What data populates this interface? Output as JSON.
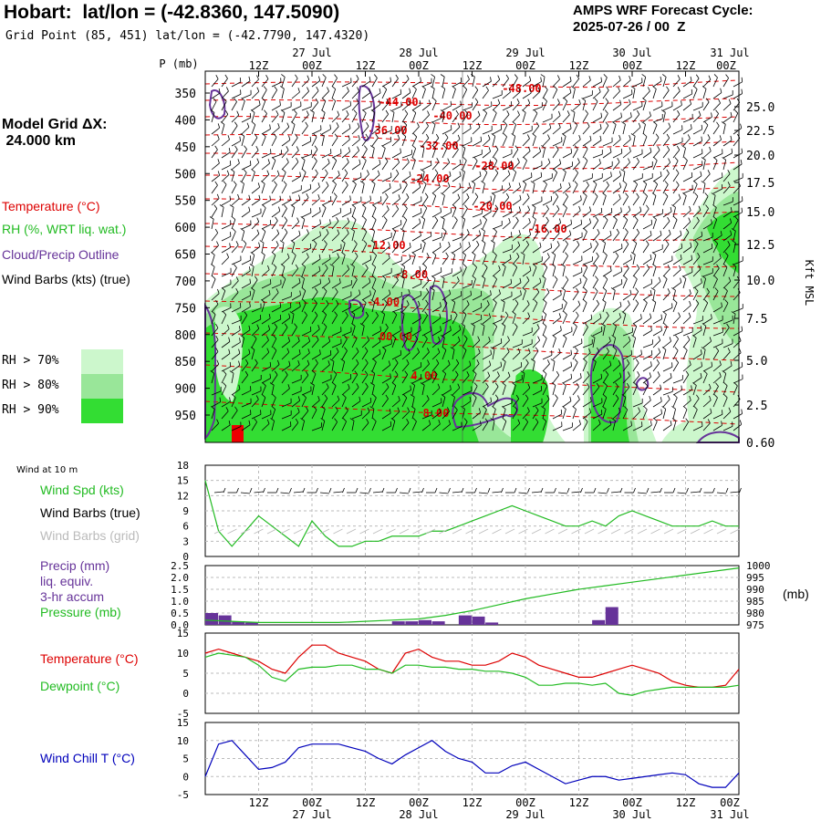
{
  "header": {
    "title": "Hobart:  lat/lon = (-42.8360, 147.5090)",
    "subtitle": "Grid Point (85, 451) lat/lon = (-42.7790, 147.4320)",
    "forecast_label": "AMPS WRF Forecast Cycle:",
    "forecast_cycle": "2025-07-26 / 00  Z"
  },
  "left_panel": {
    "model_grid_label": "Model Grid ΔX:",
    "model_grid_value": " 24.000 km",
    "temperature_label": "Temperature (°C)",
    "rh_label": "RH (%, WRT liq. wat.)",
    "cloud_label": "Cloud/Precip Outline",
    "barbs_label": "Wind Barbs (kts) (true)",
    "rh_legend": [
      {
        "label": "RH > 70%",
        "color": "#ccf7cc"
      },
      {
        "label": "RH > 80%",
        "color": "#99e699"
      },
      {
        "label": "RH > 90%",
        "color": "#33dd33"
      }
    ]
  },
  "axes": {
    "p_label": "P (mb)",
    "kft_label": "Kft MSL",
    "top_time_ticks": [
      "12Z",
      "00Z",
      "12Z",
      "00Z",
      "12Z",
      "00Z",
      "12Z",
      "00Z",
      "12Z",
      "00Z"
    ],
    "date_labels": [
      "27 Jul",
      "28 Jul",
      "29 Jul",
      "30 Jul",
      "31 Jul"
    ],
    "bottom_time_ticks": [
      "12Z",
      "00Z",
      "12Z",
      "00Z",
      "12Z",
      "00Z",
      "12Z",
      "00Z",
      "12Z",
      "00Z"
    ]
  },
  "panels": {
    "wind_title": "Wind at 10 m",
    "wind_spd_label": "Wind Spd (kts)",
    "wind_barbs_true_label": "Wind Barbs (true)",
    "wind_barbs_grid_label": "Wind Barbs (grid)",
    "precip_label_1": "Precip (mm)",
    "precip_label_2": "liq. equiv.",
    "precip_label_3": "3-hr accum",
    "pressure_label": "Pressure (mb)",
    "mb_unit": "(mb)",
    "temp_label": "Temperature (°C)",
    "dewpoint_label": "Dewpoint (°C)",
    "windchill_label": "Wind Chill T (°C)"
  },
  "colors": {
    "temperature": "#dd0000",
    "rh_line": "#22bb22",
    "cloud": "#663399",
    "windchill": "#0000bb",
    "grid": "#bbbbbb"
  },
  "chart_data": [
    {
      "type": "heatmap",
      "name": "time-height cross section",
      "y_pressure_ticks": [
        350,
        400,
        450,
        500,
        550,
        600,
        650,
        700,
        750,
        800,
        850,
        900,
        950
      ],
      "y_kft_ticks": [
        "25.0",
        "22.5",
        "20.0",
        "17.5",
        "15.0",
        "12.5",
        "10.0",
        "7.5",
        "5.0",
        "2.5",
        "0.60"
      ],
      "isotherm_labels": [
        "-48.00",
        "-44.00",
        "-40.00",
        "-36.00",
        "-32.00",
        "-28.00",
        "-24.00",
        "-20.00",
        "-16.00",
        "-12.00",
        "-8.00",
        "-4.00",
        "00.00",
        "4.00",
        "8.00"
      ]
    },
    {
      "type": "line",
      "name": "wind speed",
      "x_hours": [
        0,
        3,
        6,
        9,
        12,
        15,
        18,
        21,
        24,
        27,
        30,
        33,
        36,
        39,
        42,
        45,
        48,
        51,
        54,
        57,
        60,
        63,
        66,
        69,
        72,
        75,
        78,
        81,
        84,
        87,
        90,
        93,
        96,
        99,
        102,
        105,
        108,
        111,
        114,
        117,
        120
      ],
      "values": [
        15,
        5,
        2,
        5,
        8,
        6,
        4,
        2,
        7,
        4,
        2,
        2,
        3,
        3,
        4,
        4,
        4,
        5,
        5,
        6,
        7,
        8,
        9,
        10,
        9,
        8,
        7,
        6,
        6,
        7,
        6,
        8,
        9,
        8,
        7,
        6,
        6,
        6,
        7,
        6,
        6
      ],
      "ylim": [
        0,
        18
      ],
      "yticks": [
        0,
        3,
        6,
        9,
        12,
        15,
        18
      ]
    },
    {
      "type": "bar",
      "name": "precip and pressure",
      "precip_x_hours": [
        0,
        3,
        6,
        9,
        42,
        45,
        48,
        51,
        57,
        60,
        63,
        87,
        90
      ],
      "precip_values": [
        0.5,
        0.4,
        0.15,
        0.1,
        0.15,
        0.15,
        0.2,
        0.15,
        0.4,
        0.35,
        0.1,
        0.2,
        0.75
      ],
      "precip_ylim": [
        0,
        2.5
      ],
      "precip_yticks": [
        "0.0",
        "0.5",
        "1.0",
        "1.5",
        "2.0",
        "2.5"
      ],
      "pressure_x_hours": [
        0,
        6,
        12,
        18,
        24,
        30,
        36,
        42,
        48,
        54,
        60,
        66,
        72,
        78,
        84,
        90,
        96,
        102,
        108,
        114,
        120
      ],
      "pressure_values": [
        977,
        976.5,
        976,
        976,
        976,
        976,
        976.5,
        977,
        977.5,
        979,
        981,
        983.5,
        986,
        988,
        990,
        991.5,
        993,
        994.5,
        996,
        997.5,
        999
      ],
      "pressure_ylim": [
        975,
        1000
      ],
      "pressure_yticks": [
        975,
        980,
        985,
        990,
        995,
        1000
      ]
    },
    {
      "type": "line",
      "name": "temperature and dewpoint",
      "x_hours": [
        0,
        3,
        6,
        9,
        12,
        15,
        18,
        21,
        24,
        27,
        30,
        33,
        36,
        39,
        42,
        45,
        48,
        51,
        54,
        57,
        60,
        63,
        66,
        69,
        72,
        75,
        78,
        81,
        84,
        87,
        90,
        93,
        96,
        99,
        102,
        105,
        108,
        111,
        114,
        117,
        120
      ],
      "series": [
        {
          "name": "Temperature",
          "values": [
            10,
            11,
            10,
            9,
            8,
            6,
            5,
            9,
            12,
            12,
            10,
            9,
            8,
            6,
            5,
            10,
            11,
            9,
            8,
            8,
            7,
            7,
            8,
            10,
            9,
            7,
            6,
            5,
            4,
            4,
            5,
            6,
            7,
            6,
            5,
            3,
            2,
            1.5,
            1.5,
            2,
            6
          ]
        },
        {
          "name": "Dewpoint",
          "values": [
            9,
            10,
            9.5,
            9,
            7,
            4,
            3,
            6,
            6.5,
            6.5,
            7,
            7,
            6,
            6,
            5,
            7,
            7,
            6.5,
            6.5,
            6,
            6,
            5.5,
            5.5,
            5,
            4,
            2,
            2,
            2.5,
            2.5,
            2,
            2.5,
            0,
            -0.5,
            0.5,
            1,
            1.5,
            1.5,
            1.5,
            1.5,
            1.5,
            2
          ]
        }
      ],
      "ylim": [
        -5,
        15
      ],
      "yticks": [
        -5,
        0,
        5,
        10,
        15
      ]
    },
    {
      "type": "line",
      "name": "wind chill",
      "x_hours": [
        0,
        3,
        6,
        9,
        12,
        15,
        18,
        21,
        24,
        27,
        30,
        33,
        36,
        39,
        42,
        45,
        48,
        51,
        54,
        57,
        60,
        63,
        66,
        69,
        72,
        75,
        78,
        81,
        84,
        87,
        90,
        93,
        96,
        99,
        102,
        105,
        108,
        111,
        114,
        117,
        120
      ],
      "values": [
        0,
        9,
        10,
        6,
        2,
        2.5,
        4,
        8,
        9,
        9,
        9,
        8,
        7,
        5,
        3.5,
        6,
        8,
        10,
        7,
        5,
        4,
        1,
        1,
        3,
        4,
        2,
        0,
        -2,
        -1,
        0,
        0,
        -1,
        -0.5,
        0,
        0.5,
        1,
        0.5,
        -2,
        -3,
        -3,
        1
      ],
      "ylim": [
        -5,
        15
      ],
      "yticks": [
        -5,
        0,
        5,
        10,
        15
      ]
    }
  ]
}
